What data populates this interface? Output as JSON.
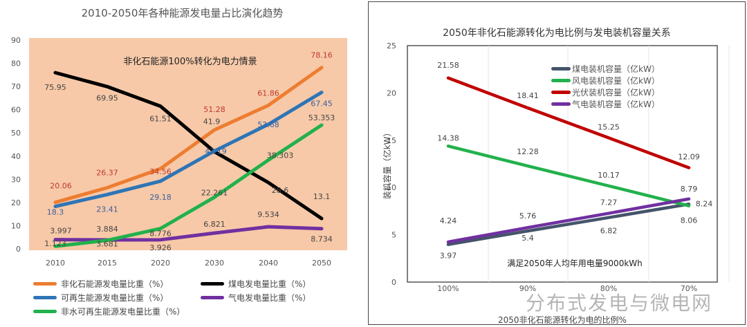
{
  "chart_data": [
    {
      "type": "line",
      "title": "2010-2050年各种能源发电量占比演化趋势",
      "annotation": "非化石能源100%转化为电力情景",
      "categories": [
        "2010",
        "2015",
        "2020",
        "2030",
        "2040",
        "2050"
      ],
      "ylim": [
        0,
        90
      ],
      "yticks": [
        "0",
        "10",
        "20",
        "30",
        "40",
        "50",
        "60",
        "70",
        "80",
        "90"
      ],
      "background": "#f7c9a8",
      "legend_position": "bottom",
      "series": [
        {
          "name": "非化石能源发电量比重（%）",
          "color": "#ed7d31",
          "label_color": "#c0392b",
          "values": [
            20.06,
            26.37,
            34.56,
            51.28,
            61.86,
            78.16
          ]
        },
        {
          "name": "煤电发电量比重（%）",
          "color": "#000000",
          "label_color": "#444444",
          "values": [
            75.95,
            69.95,
            61.51,
            41.9,
            28.6,
            13.1
          ]
        },
        {
          "name": "可再生能源发电量比重（%）",
          "color": "#2e75b6",
          "label_color": "#3a5fa0",
          "values": [
            18.3,
            23.41,
            29.18,
            42.19,
            53.68,
            67.45
          ]
        },
        {
          "name": "气电发电量比重（%）",
          "color": "#7030a0",
          "label_color": "#444444",
          "values": [
            3.997,
            3.884,
            3.926,
            6.821,
            9.534,
            8.734
          ]
        },
        {
          "name": "非水可再生能源发电量比重（%）",
          "color": "#22b14c",
          "label_color": "#444444",
          "values": [
            1.123,
            3.681,
            8.776,
            22.261,
            38.303,
            53.353
          ]
        }
      ]
    },
    {
      "type": "line",
      "title": "2050年非化石能源转化为电比例与发电装机容量关系",
      "xlabel": "2050非化石能源转化为电的比例%",
      "ylabel": "装机容量（亿kW）",
      "annotation": "满足2050年人均年用电量9000kWh",
      "categories": [
        "100%",
        "90%",
        "80%",
        "70%"
      ],
      "ylim": [
        0,
        25
      ],
      "yticks": [
        "0",
        "5",
        "10",
        "15",
        "20",
        "25"
      ],
      "legend_position": "top-right",
      "series": [
        {
          "name": "煤电装机容量（亿kW）",
          "color": "#44546a",
          "values": [
            3.97,
            5.4,
            6.82,
            8.24
          ]
        },
        {
          "name": "风电装机容量（亿kW）",
          "color": "#22b14c",
          "values": [
            14.38,
            12.28,
            10.17,
            8.06
          ]
        },
        {
          "name": "光伏装机容量（亿kW）",
          "color": "#c00000",
          "values": [
            21.58,
            18.41,
            15.25,
            12.09
          ]
        },
        {
          "name": "气电装机容量（亿kW）",
          "color": "#7030a0",
          "values": [
            4.24,
            5.76,
            7.27,
            8.79
          ]
        }
      ]
    }
  ],
  "watermark": "分布式发电与微电网"
}
